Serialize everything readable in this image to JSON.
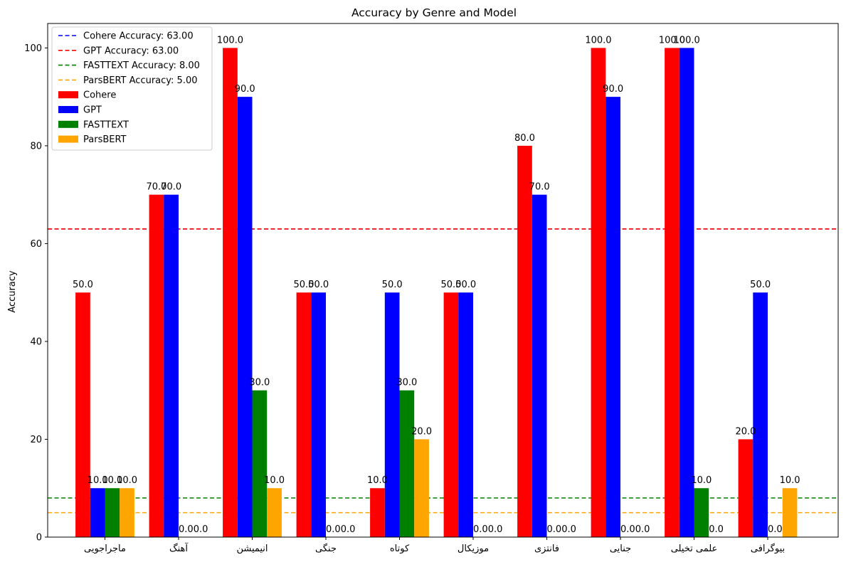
{
  "chart_data": {
    "type": "bar",
    "title": "Accuracy by Genre and Model",
    "xlabel": "",
    "ylabel": "Accuracy",
    "ylim": [
      0,
      105
    ],
    "yticks": [
      "0",
      "20",
      "40",
      "60",
      "80",
      "100"
    ],
    "grid": false,
    "legend_position": "top-left",
    "categories": [
      "ماجراجویی",
      "آهنگ",
      "انیمیشن",
      "جنگی",
      "کوتاه",
      "موزیکال",
      "فانتزی",
      "جنایی",
      "علمی تخیلی",
      "بیوگرافی"
    ],
    "series": [
      {
        "name": "Cohere",
        "color": "#ff0000",
        "values": [
          50,
          70,
          100,
          50,
          10,
          50,
          80,
          100,
          100,
          20
        ]
      },
      {
        "name": "GPT",
        "color": "#0000ff",
        "values": [
          10,
          70,
          90,
          50,
          50,
          50,
          70,
          90,
          100,
          50
        ]
      },
      {
        "name": "FASTTEXT",
        "color": "#008000",
        "values": [
          10,
          0,
          30,
          0,
          30,
          0,
          0,
          0,
          10,
          0
        ]
      },
      {
        "name": "ParsBERT",
        "color": "#ffa500",
        "values": [
          10,
          0,
          10,
          0,
          20,
          0,
          0,
          0,
          0,
          10
        ]
      }
    ],
    "bar_labels": [
      [
        "50.0",
        "70.0",
        "100.0",
        "50.0",
        "10.0",
        "50.0",
        "80.0",
        "100.0",
        "100.0",
        "20.0"
      ],
      [
        "10.0",
        "70.0",
        "90.0",
        "50.0",
        "50.0",
        "50.0",
        "70.0",
        "90.0",
        "100.0",
        "50.0"
      ],
      [
        "10.0",
        "0.0",
        "30.0",
        "0.0",
        "30.0",
        "0.0",
        "0.0",
        "0.0",
        "10.0",
        "0.0"
      ],
      [
        "10.0",
        "0.0",
        "10.0",
        "0.0",
        "20.0",
        "0.0",
        "0.0",
        "0.0",
        "0.0",
        "10.0"
      ]
    ],
    "reference_lines": [
      {
        "label": "Cohere Accuracy: 63.00",
        "value": 63,
        "color": "#0000ff"
      },
      {
        "label": "GPT Accuracy: 63.00",
        "value": 63,
        "color": "#ff0000"
      },
      {
        "label": "FASTTEXT Accuracy: 8.00",
        "value": 8,
        "color": "#008000"
      },
      {
        "label": "ParsBERT Accuracy: 5.00",
        "value": 5,
        "color": "#ffa500"
      }
    ]
  }
}
